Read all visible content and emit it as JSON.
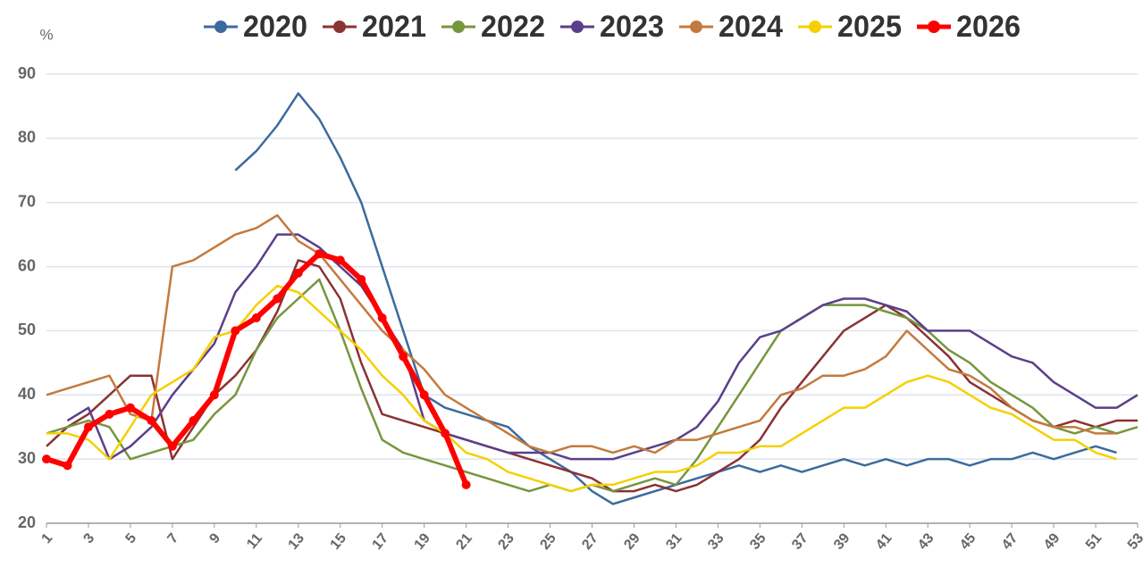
{
  "chart_data": {
    "type": "line",
    "y_unit": "%",
    "x": [
      1,
      2,
      3,
      4,
      5,
      6,
      7,
      8,
      9,
      10,
      11,
      12,
      13,
      14,
      15,
      16,
      17,
      18,
      19,
      20,
      21,
      22,
      23,
      24,
      25,
      26,
      27,
      28,
      29,
      30,
      31,
      32,
      33,
      34,
      35,
      36,
      37,
      38,
      39,
      40,
      41,
      42,
      43,
      44,
      45,
      46,
      47,
      48,
      49,
      50,
      51,
      52,
      53
    ],
    "xlim": [
      1,
      53
    ],
    "xticks": [
      1,
      3,
      5,
      7,
      9,
      11,
      13,
      15,
      17,
      19,
      21,
      23,
      25,
      27,
      29,
      31,
      33,
      35,
      37,
      39,
      41,
      43,
      45,
      47,
      49,
      51,
      53
    ],
    "ylim": [
      20,
      90
    ],
    "yticks": [
      20,
      30,
      40,
      50,
      60,
      70,
      80,
      90
    ],
    "grid": true,
    "series": [
      {
        "name": "2020",
        "color": "#3d6a9e",
        "values": [
          null,
          null,
          null,
          null,
          null,
          null,
          null,
          null,
          null,
          75,
          78,
          82,
          87,
          83,
          77,
          70,
          60,
          50,
          40,
          38,
          37,
          36,
          35,
          32,
          30,
          28,
          25,
          23,
          24,
          25,
          26,
          27,
          28,
          29,
          28,
          29,
          28,
          29,
          30,
          29,
          30,
          29,
          30,
          30,
          29,
          30,
          30,
          31,
          30,
          31,
          32,
          31,
          null
        ]
      },
      {
        "name": "2021",
        "color": "#8b3232",
        "values": [
          32,
          35,
          37,
          40,
          43,
          43,
          30,
          35,
          40,
          43,
          47,
          53,
          61,
          60,
          55,
          45,
          37,
          36,
          35,
          34,
          33,
          32,
          31,
          30,
          29,
          28,
          27,
          25,
          25,
          26,
          25,
          26,
          28,
          30,
          33,
          38,
          42,
          46,
          50,
          52,
          54,
          52,
          49,
          46,
          42,
          40,
          38,
          36,
          35,
          36,
          35,
          36,
          36
        ]
      },
      {
        "name": "2022",
        "color": "#76963e",
        "values": [
          34,
          35,
          36,
          35,
          30,
          31,
          32,
          33,
          37,
          40,
          47,
          52,
          55,
          58,
          50,
          41,
          33,
          31,
          30,
          29,
          28,
          27,
          26,
          25,
          26,
          25,
          26,
          25,
          26,
          27,
          26,
          30,
          35,
          40,
          45,
          50,
          52,
          54,
          54,
          54,
          53,
          52,
          50,
          47,
          45,
          42,
          40,
          38,
          35,
          34,
          35,
          34,
          35
        ]
      },
      {
        "name": "2023",
        "color": "#5b3f8a",
        "values": [
          null,
          36,
          38,
          30,
          32,
          35,
          40,
          44,
          48,
          56,
          60,
          65,
          65,
          63,
          60,
          57,
          52,
          47,
          36,
          34,
          33,
          32,
          31,
          31,
          31,
          30,
          30,
          30,
          31,
          32,
          33,
          35,
          39,
          45,
          49,
          50,
          52,
          54,
          55,
          55,
          54,
          53,
          50,
          50,
          50,
          48,
          46,
          45,
          42,
          40,
          38,
          38,
          40
        ]
      },
      {
        "name": "2024",
        "color": "#c47a3e",
        "values": [
          40,
          41,
          42,
          43,
          37,
          36,
          60,
          61,
          63,
          65,
          66,
          68,
          64,
          62,
          58,
          54,
          50,
          47,
          44,
          40,
          38,
          36,
          34,
          32,
          31,
          32,
          32,
          31,
          32,
          31,
          33,
          33,
          34,
          35,
          36,
          40,
          41,
          43,
          43,
          44,
          46,
          50,
          47,
          44,
          43,
          41,
          38,
          36,
          35,
          35,
          34,
          34,
          null
        ]
      },
      {
        "name": "2025",
        "color": "#f5d000",
        "values": [
          34,
          34,
          33,
          30,
          35,
          40,
          42,
          44,
          49,
          50,
          54,
          57,
          56,
          53,
          50,
          47,
          43,
          40,
          36,
          34,
          31,
          30,
          28,
          27,
          26,
          25,
          26,
          26,
          27,
          28,
          28,
          29,
          31,
          31,
          32,
          32,
          34,
          36,
          38,
          38,
          40,
          42,
          43,
          42,
          40,
          38,
          37,
          35,
          33,
          33,
          31,
          30,
          null
        ]
      },
      {
        "name": "2026",
        "color": "#ff0000",
        "markers": true,
        "values": [
          30,
          29,
          35,
          37,
          38,
          36,
          32,
          36,
          40,
          50,
          52,
          55,
          59,
          62,
          61,
          58,
          52,
          46,
          40,
          34,
          26,
          null,
          null,
          null,
          null,
          null,
          null,
          null,
          null,
          null,
          null,
          null,
          null,
          null,
          null,
          null,
          null,
          null,
          null,
          null,
          null,
          null,
          null,
          null,
          null,
          null,
          null,
          null,
          null,
          null,
          null,
          null,
          null
        ]
      }
    ]
  }
}
